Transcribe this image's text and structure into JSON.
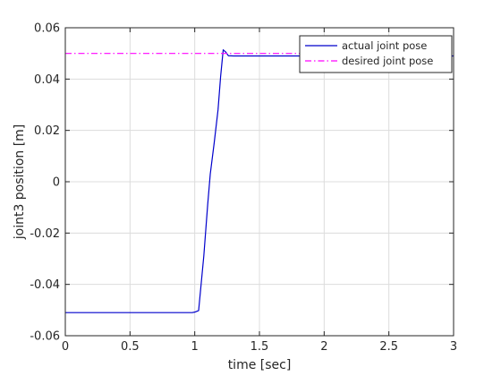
{
  "chart_data": {
    "type": "line",
    "title": "",
    "xlabel": "time [sec]",
    "ylabel": "joint3 position [m]",
    "xlim": [
      0,
      3
    ],
    "ylim": [
      -0.06,
      0.06
    ],
    "xticks": [
      0,
      0.5,
      1,
      1.5,
      2,
      2.5,
      3
    ],
    "xtick_labels": [
      "0",
      "0.5",
      "1",
      "1.5",
      "2",
      "2.5",
      "3"
    ],
    "yticks": [
      -0.06,
      -0.04,
      -0.02,
      0,
      0.02,
      0.04,
      0.06
    ],
    "ytick_labels": [
      "-0.06",
      "-0.04",
      "-0.02",
      "0",
      "0.02",
      "0.04",
      "0.06"
    ],
    "grid": true,
    "legend_position": "top-right",
    "series": [
      {
        "name": "actual joint pose",
        "color": "#0000cc",
        "style": "solid",
        "x": [
          0,
          0.98,
          1.0,
          1.03,
          1.07,
          1.1,
          1.12,
          1.15,
          1.18,
          1.2,
          1.22,
          1.24,
          1.26,
          1.3,
          1.5,
          2.0,
          2.5,
          3.0
        ],
        "y": [
          -0.051,
          -0.051,
          -0.0508,
          -0.0502,
          -0.029,
          -0.009,
          0.003,
          0.015,
          0.028,
          0.041,
          0.0514,
          0.0505,
          0.0491,
          0.049,
          0.049,
          0.049,
          0.049,
          0.049
        ]
      },
      {
        "name": "desired joint pose",
        "color": "#ff00ff",
        "style": "dashdot",
        "x": [
          0,
          3
        ],
        "y": [
          0.05,
          0.05
        ]
      }
    ]
  }
}
